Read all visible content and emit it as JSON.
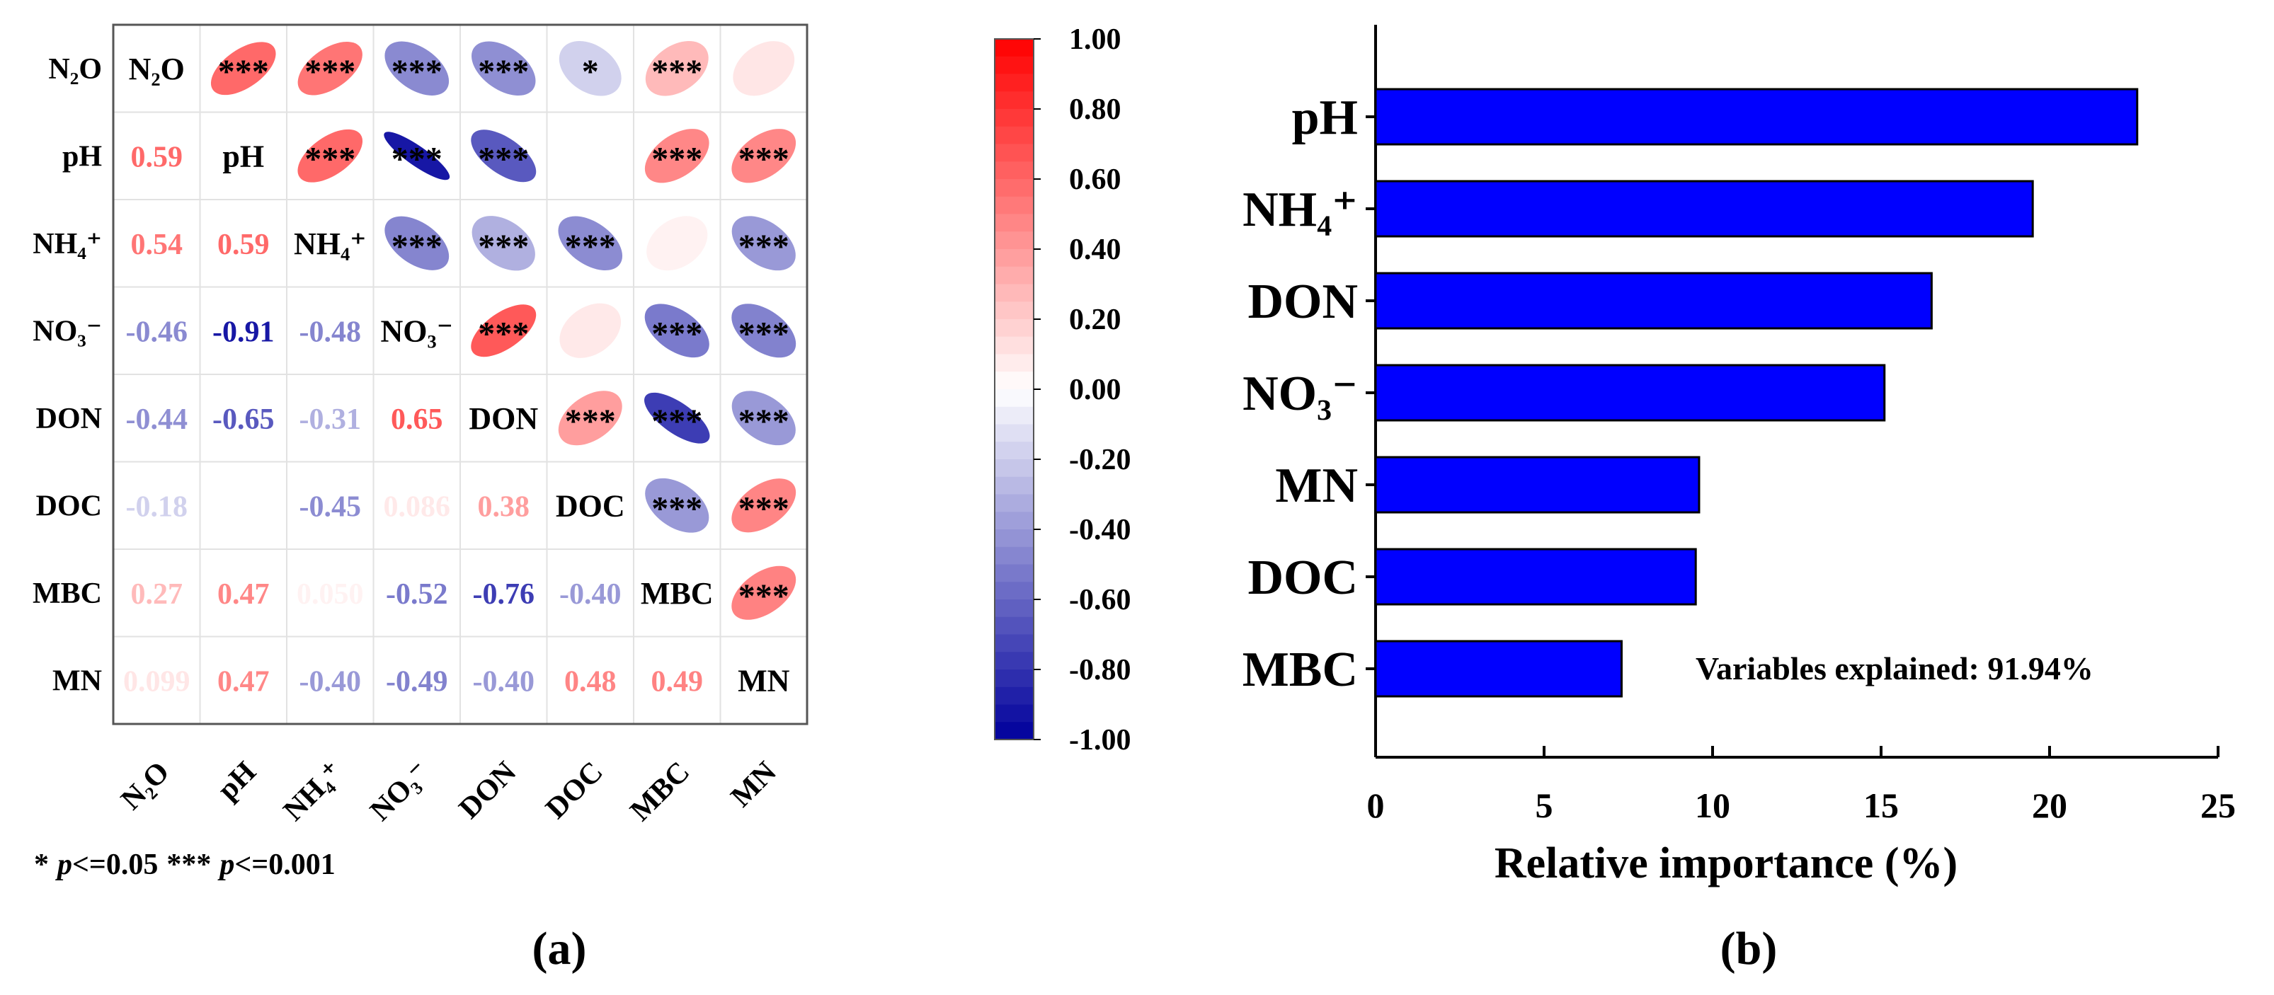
{
  "panels": {
    "a_label": "(a)",
    "b_label": "(b)"
  },
  "chart_data": [
    {
      "type": "heatmap",
      "variables": [
        "N2O",
        "pH",
        "NH4+",
        "NO3−",
        "DON",
        "DOC",
        "MBC",
        "MN"
      ],
      "row_labels": [
        "N₂O",
        "pH",
        "NH₄⁺",
        "NO₃⁻",
        "DON",
        "DOC",
        "MBC",
        "MN"
      ],
      "col_labels": [
        "N₂O",
        "pH",
        "NH₄⁺",
        "NO₃⁻",
        "DON",
        "DOC",
        "MBC",
        "MN"
      ],
      "diagonal_labels": [
        "N₂O",
        "pH",
        "NH₄⁺",
        "NO₃⁻",
        "DON",
        "DOC",
        "MBC",
        "MN"
      ],
      "matrix": [
        [
          1.0,
          0.59,
          0.54,
          -0.46,
          -0.44,
          -0.18,
          0.27,
          0.099
        ],
        [
          0.59,
          1.0,
          0.59,
          -0.91,
          -0.65,
          0.0,
          0.47,
          0.47
        ],
        [
          0.54,
          0.59,
          1.0,
          -0.48,
          -0.31,
          -0.45,
          0.05,
          -0.4
        ],
        [
          -0.46,
          -0.91,
          -0.48,
          1.0,
          0.65,
          0.086,
          -0.52,
          -0.49
        ],
        [
          -0.44,
          -0.65,
          -0.31,
          0.65,
          1.0,
          0.38,
          -0.76,
          -0.4
        ],
        [
          -0.18,
          0.0,
          -0.45,
          0.086,
          0.38,
          1.0,
          -0.4,
          0.48
        ],
        [
          0.27,
          0.47,
          0.05,
          -0.52,
          -0.76,
          -0.4,
          1.0,
          0.49
        ],
        [
          0.099,
          0.47,
          -0.4,
          -0.49,
          -0.4,
          0.48,
          0.49,
          1.0
        ]
      ],
      "value_labels": [
        [
          "",
          "",
          "",
          "",
          "",
          "",
          "",
          ""
        ],
        [
          "0.59",
          "",
          "",
          "",
          "",
          "",
          "",
          ""
        ],
        [
          "0.54",
          "0.59",
          "",
          "",
          "",
          "",
          "",
          ""
        ],
        [
          "-0.46",
          "-0.91",
          "-0.48",
          "",
          "",
          "",
          "",
          ""
        ],
        [
          "-0.44",
          "-0.65",
          "-0.31",
          "0.65",
          "",
          "",
          "",
          ""
        ],
        [
          "-0.18",
          "",
          "-0.45",
          "0.086",
          "0.38",
          "",
          "",
          ""
        ],
        [
          "0.27",
          "0.47",
          "0.050",
          "-0.52",
          "-0.76",
          "-0.40",
          "",
          ""
        ],
        [
          "0.099",
          "0.47",
          "-0.40",
          "-0.49",
          "-0.40",
          "0.48",
          "0.49",
          ""
        ]
      ],
      "significance": [
        [
          "",
          "***",
          "***",
          "***",
          "***",
          "*",
          "***",
          ""
        ],
        [
          "",
          "",
          "***",
          "***",
          "***",
          "",
          "***",
          "***"
        ],
        [
          "",
          "",
          "",
          "***",
          "***",
          "***",
          "",
          "***"
        ],
        [
          "",
          "",
          "",
          "",
          "***",
          "",
          "***",
          "***"
        ],
        [
          "",
          "",
          "",
          "",
          "",
          "***",
          "***",
          "***"
        ],
        [
          "",
          "",
          "",
          "",
          "",
          "",
          "***",
          "***"
        ],
        [
          "",
          "",
          "",
          "",
          "",
          "",
          "",
          "***"
        ],
        [
          "",
          "",
          "",
          "",
          "",
          "",
          "",
          ""
        ]
      ],
      "colorbar": {
        "range": [
          -1.0,
          1.0
        ],
        "ticks": [
          "1.00",
          "0.80",
          "0.60",
          "0.40",
          "0.20",
          "0.00",
          "-0.20",
          "-0.40",
          "-0.60",
          "-0.80",
          "-1.00"
        ],
        "colors": {
          "positive": "#ff0000",
          "zero": "#ffffff",
          "negative": "#00009c"
        }
      },
      "footnote": {
        "star1": "*",
        "p1_italic": "p",
        "p1_rest": "<=0.05",
        "star3": "***",
        "p2_italic": "p",
        "p2_rest": "<=0.001"
      }
    },
    {
      "type": "bar",
      "orientation": "horizontal",
      "categories": [
        "pH",
        "NH₄⁺",
        "DON",
        "NO₃⁻",
        "MN",
        "DOC",
        "MBC"
      ],
      "values": [
        22.6,
        19.5,
        16.5,
        15.1,
        9.6,
        9.5,
        7.3
      ],
      "xlabel": "Relative importance (%)",
      "xlim": [
        0,
        25
      ],
      "xticks": [
        0,
        5,
        10,
        15,
        20,
        25
      ],
      "annotation": "Variables explained: 91.94%",
      "bar_color": "#0000ff",
      "edge_color": "#000000"
    }
  ]
}
